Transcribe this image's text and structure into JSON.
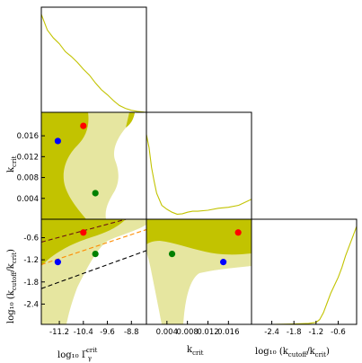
{
  "chart_data": {
    "type": "triangle-corner-plot",
    "colors": {
      "contour_outer": "#e6e6a0",
      "contour_inner": "#c2c300",
      "marginal_line": "#c2c300",
      "point_red": "#ff0000",
      "point_blue": "#0000ff",
      "point_green": "#008000",
      "dashed_dark_red": "#6a1515",
      "dashed_orange": "#ff8c00",
      "dashed_black": "#000000"
    },
    "parameters": [
      {
        "id": "logGamma",
        "label": "log₁₀ Γɣᶜʳᶦᵗ",
        "range": [
          -11.8,
          -8.3
        ],
        "ticks": [
          "-11.2",
          "-10.4",
          "-9.6",
          "-8.8"
        ],
        "tick_values": [
          -11.2,
          -10.4,
          -9.6,
          -8.8
        ]
      },
      {
        "id": "kcrit",
        "label": "k_crit",
        "range": [
          0.0,
          0.0205
        ],
        "ticks": [
          "0.004",
          "0.008",
          "0.012",
          "0.016"
        ],
        "tick_values": [
          0.004,
          0.008,
          0.012,
          0.016
        ]
      },
      {
        "id": "logRatio",
        "label": "log₁₀ (k_cutoff / k_crit)",
        "range": [
          -2.95,
          -0.1
        ],
        "ticks": [
          "-2.4",
          "-1.8",
          "-1.2",
          "-0.6"
        ],
        "tick_values": [
          -2.4,
          -1.8,
          -1.2,
          -0.6
        ]
      }
    ],
    "axis_labels": {
      "x_bottom_left": "log₁₀ Γ",
      "x_bottom_left_super": "crit",
      "x_bottom_left_sub": "γ",
      "x_bottom_mid": "k",
      "x_bottom_mid_sub": "crit",
      "x_bottom_right": "log₁₀ (k",
      "x_bottom_right_sub1": "cutoff",
      "x_bottom_right_mid": "/k",
      "x_bottom_right_sub2": "crit",
      "x_bottom_right_end": ")",
      "y_mid": "k",
      "y_mid_sub": "crit",
      "y_bottom": "log₁₀ (k",
      "y_bottom_sub1": "cutoff",
      "y_bottom_mid": "/k",
      "y_bottom_sub2": "crit",
      "y_bottom_end": ")"
    },
    "marginals": {
      "logGamma": {
        "x": [
          -11.8,
          -11.6,
          -11.4,
          -11.2,
          -11.0,
          -10.8,
          -10.6,
          -10.4,
          -10.2,
          -10.0,
          -9.8,
          -9.6,
          -9.4,
          -9.2,
          -9.0,
          -8.8,
          -8.6,
          -8.3
        ],
        "y": [
          1.0,
          0.84,
          0.76,
          0.7,
          0.62,
          0.57,
          0.51,
          0.44,
          0.38,
          0.3,
          0.23,
          0.18,
          0.12,
          0.07,
          0.04,
          0.02,
          0.01,
          0.0
        ]
      },
      "kcrit": {
        "x": [
          0.0,
          0.0005,
          0.001,
          0.0015,
          0.002,
          0.003,
          0.004,
          0.005,
          0.006,
          0.007,
          0.008,
          0.009,
          0.01,
          0.012,
          0.014,
          0.016,
          0.018,
          0.0205
        ],
        "y": [
          0.85,
          0.72,
          0.52,
          0.38,
          0.26,
          0.14,
          0.1,
          0.07,
          0.05,
          0.055,
          0.07,
          0.08,
          0.08,
          0.09,
          0.11,
          0.12,
          0.14,
          0.2
        ]
      },
      "logRatio": {
        "x": [
          -2.95,
          -2.4,
          -1.8,
          -1.4,
          -1.2,
          -1.1,
          -1.0,
          -0.9,
          -0.8,
          -0.7,
          -0.6,
          -0.5,
          -0.4,
          -0.3,
          -0.2,
          -0.1
        ],
        "y": [
          0.0,
          0.0,
          0.005,
          0.01,
          0.02,
          0.05,
          0.12,
          0.22,
          0.32,
          0.4,
          0.48,
          0.58,
          0.7,
          0.8,
          0.9,
          1.0
        ]
      }
    },
    "points": [
      {
        "color_key": "point_red",
        "logGamma": -10.4,
        "kcrit": 0.0179,
        "logRatio": -0.46
      },
      {
        "color_key": "point_blue",
        "logGamma": -11.25,
        "kcrit": 0.015,
        "logRatio": -1.26
      },
      {
        "color_key": "point_green",
        "logGamma": -10.0,
        "kcrit": 0.005,
        "logRatio": -1.04
      }
    ],
    "dashed_lines_logGamma_vs_logRatio": [
      {
        "color_key": "dashed_dark_red",
        "x": [
          -11.8,
          -8.3
        ],
        "y": [
          -0.72,
          0.05
        ]
      },
      {
        "color_key": "dashed_orange",
        "x": [
          -11.8,
          -8.3
        ],
        "y": [
          -1.33,
          -0.38
        ]
      },
      {
        "color_key": "dashed_black",
        "x": [
          -11.8,
          -8.3
        ],
        "y": [
          -1.98,
          -0.95
        ]
      }
    ],
    "grid": false,
    "legend": "none"
  }
}
